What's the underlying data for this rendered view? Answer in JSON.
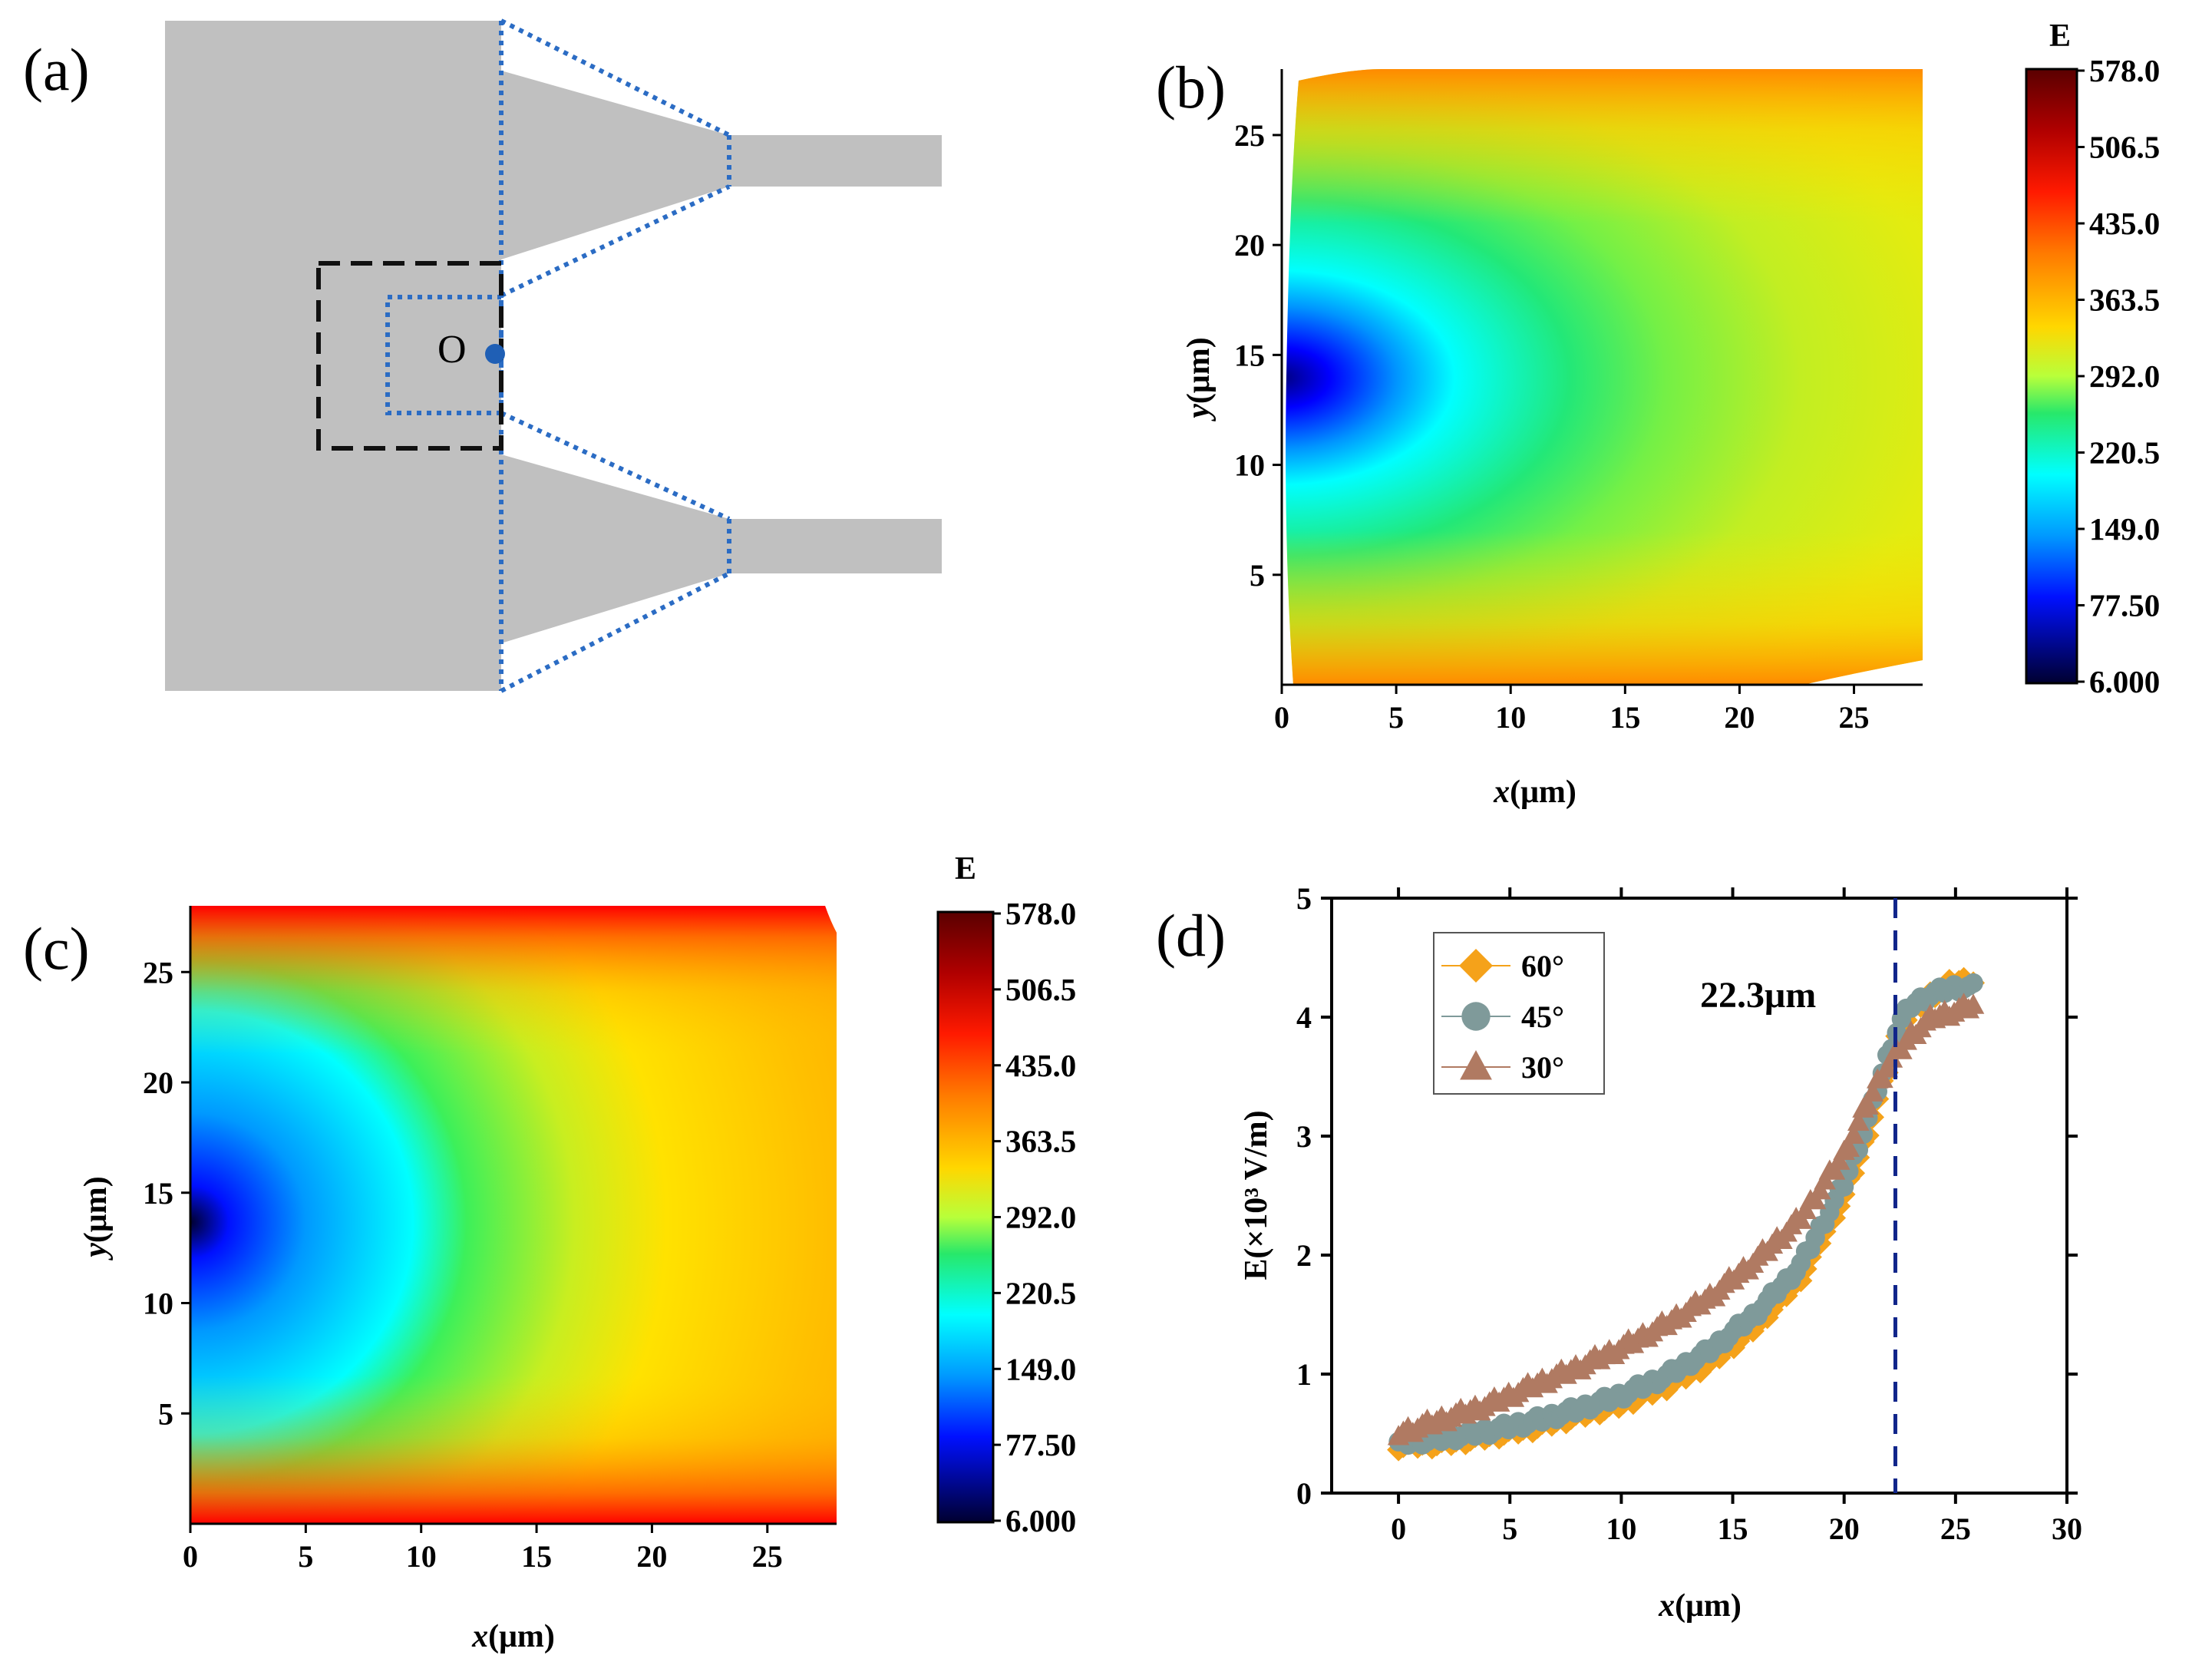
{
  "figure": {
    "panel_labels": [
      "(a)",
      "(b)",
      "(c)",
      "(d)"
    ]
  },
  "schematic": {
    "origin_label": "O"
  },
  "colorbar": {
    "title": "E",
    "ticks": [
      "578.0",
      "506.5",
      "435.0",
      "363.5",
      "292.0",
      "220.5",
      "149.0",
      "77.50",
      "6.000"
    ]
  },
  "chart_data": [
    {
      "type": "heatmap",
      "panel": "(b)",
      "xlabel_italic": "x",
      "xlabel_unit": "(μm)",
      "ylabel_italic": "y",
      "ylabel_unit": "(μm)",
      "xlim": [
        0,
        28
      ],
      "ylim": [
        0,
        28
      ],
      "xticks": [
        0,
        5,
        10,
        15,
        20,
        25
      ],
      "yticks": [
        5,
        10,
        15,
        20,
        25
      ],
      "minimum_at": [
        0,
        14
      ],
      "value_range": [
        6.0,
        578.0
      ],
      "colorbar_title": "E"
    },
    {
      "type": "heatmap",
      "panel": "(c)",
      "xlabel_italic": "x",
      "xlabel_unit": "(μm)",
      "ylabel_italic": "y",
      "ylabel_unit": "(μm)",
      "xlim": [
        0,
        28
      ],
      "ylim": [
        0,
        28
      ],
      "xticks": [
        0,
        5,
        10,
        15,
        20,
        25
      ],
      "yticks": [
        5,
        10,
        15,
        20,
        25
      ],
      "minimum_at": [
        0,
        13.5
      ],
      "value_range": [
        6.0,
        578.0
      ],
      "colorbar_title": "E"
    },
    {
      "type": "scatter",
      "panel": "(d)",
      "xlabel_italic": "x",
      "xlabel_unit": "(μm)",
      "ylabel": "E(×10³ V/m)",
      "xlim": [
        -3,
        30
      ],
      "ylim": [
        0,
        5
      ],
      "xticks": [
        0,
        5,
        10,
        15,
        20,
        25,
        30
      ],
      "yticks": [
        0,
        1,
        2,
        3,
        4,
        5
      ],
      "annotation": "22.3μm",
      "vline_x": 22.3,
      "series": [
        {
          "name": "60°",
          "color": "#f5a21a",
          "marker": "diamond",
          "x": [
            0,
            2,
            4,
            6,
            8,
            10,
            12,
            14,
            16,
            18,
            20,
            21,
            22,
            22.5,
            23,
            24,
            25,
            25.8
          ],
          "y": [
            0.4,
            0.42,
            0.48,
            0.55,
            0.65,
            0.75,
            0.9,
            1.1,
            1.4,
            1.8,
            2.5,
            3.0,
            3.6,
            3.9,
            4.05,
            4.2,
            4.3,
            4.3
          ]
        },
        {
          "name": "45°",
          "color": "#7f9a9a",
          "marker": "circle",
          "x": [
            0,
            2,
            4,
            6,
            8,
            10,
            12,
            14,
            16,
            18,
            20,
            21,
            22,
            22.5,
            23,
            24,
            25,
            25.8
          ],
          "y": [
            0.42,
            0.46,
            0.52,
            0.6,
            0.7,
            0.82,
            0.98,
            1.2,
            1.5,
            1.9,
            2.6,
            3.1,
            3.7,
            3.95,
            4.1,
            4.2,
            4.25,
            4.25
          ]
        },
        {
          "name": "30°",
          "color": "#b07a62",
          "marker": "triangle",
          "x": [
            0,
            2,
            4,
            6,
            8,
            10,
            12,
            14,
            16,
            18,
            20,
            21,
            21.5,
            22,
            23,
            24,
            25,
            25.8
          ],
          "y": [
            0.5,
            0.62,
            0.74,
            0.9,
            1.05,
            1.22,
            1.42,
            1.65,
            1.95,
            2.3,
            2.85,
            3.25,
            3.45,
            3.6,
            3.85,
            4.0,
            4.05,
            4.1
          ]
        }
      ]
    }
  ]
}
